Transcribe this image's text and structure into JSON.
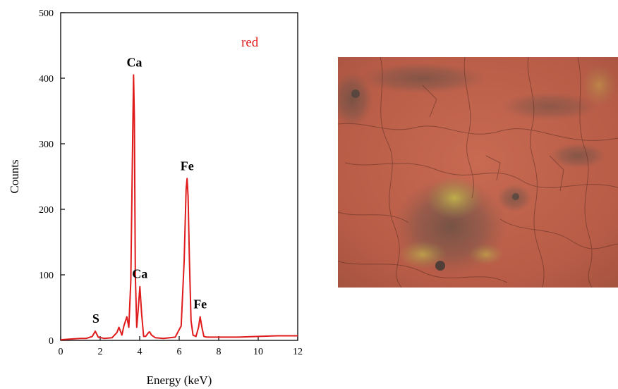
{
  "colors": {
    "series": "#e01b1b",
    "axis": "#000000",
    "micrograph_base": "#c0644f"
  },
  "chart_data": {
    "type": "line",
    "xlabel": "Energy (keV)",
    "ylabel": "Counts",
    "xlim": [
      0,
      12
    ],
    "ylim": [
      0,
      500
    ],
    "x_ticks": [
      0,
      2,
      4,
      6,
      8,
      10,
      12
    ],
    "y_ticks": [
      0,
      100,
      200,
      300,
      400,
      500
    ],
    "grid": false,
    "legend_position": "top-right",
    "series": [
      {
        "name": "red",
        "x": [
          0.0,
          0.5,
          1.0,
          1.3,
          1.6,
          1.75,
          1.9,
          2.2,
          2.6,
          2.85,
          2.95,
          3.1,
          3.2,
          3.35,
          3.45,
          3.55,
          3.65,
          3.69,
          3.73,
          3.78,
          3.85,
          3.92,
          4.01,
          4.1,
          4.2,
          4.3,
          4.45,
          4.5,
          4.6,
          4.8,
          5.2,
          5.8,
          6.1,
          6.25,
          6.35,
          6.4,
          6.45,
          6.52,
          6.6,
          6.7,
          6.85,
          6.98,
          7.06,
          7.15,
          7.25,
          7.4,
          7.6,
          8.0,
          9.0,
          10.0,
          11.0,
          12.0
        ],
        "values": [
          1,
          2,
          3,
          3,
          6,
          14,
          5,
          3,
          4,
          12,
          20,
          8,
          22,
          36,
          20,
          90,
          320,
          405,
          340,
          100,
          20,
          45,
          82,
          40,
          6,
          6,
          12,
          13,
          8,
          4,
          3,
          5,
          22,
          120,
          230,
          247,
          220,
          120,
          30,
          8,
          6,
          20,
          36,
          20,
          6,
          5,
          5,
          5,
          5,
          6,
          7,
          7
        ]
      }
    ],
    "annotations": [
      {
        "text": "S",
        "x": 1.78,
        "y": 14
      },
      {
        "text": "Ca",
        "x": 3.73,
        "y": 405
      },
      {
        "text": "Ca",
        "x": 4.01,
        "y": 82
      },
      {
        "text": "Fe",
        "x": 6.4,
        "y": 247
      },
      {
        "text": "Fe",
        "x": 7.06,
        "y": 36
      }
    ]
  }
}
